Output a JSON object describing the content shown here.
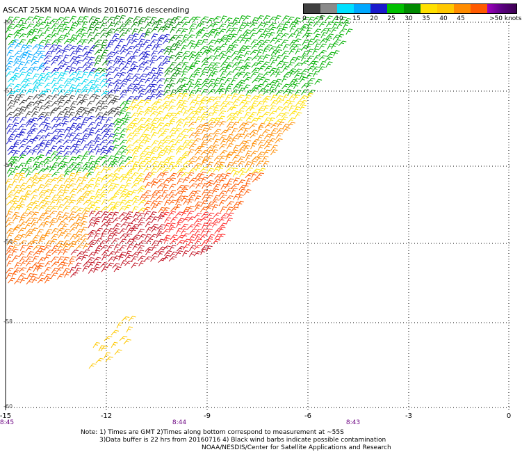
{
  "title": "ASCAT 25KM NOAA Winds 20160716 descending",
  "legend": {
    "colors": [
      "#404040",
      "#8a8a8a",
      "#00e0ff",
      "#00a8ff",
      "#1a1acc",
      "#00c000",
      "#008a00",
      "#ffe000",
      "#ffc800",
      "#ff8c00",
      "#ff5a00",
      "#ff2828",
      "#c01020",
      "#8a4a20",
      "#4a2000",
      "#e000e0",
      "#a000c0",
      "#8000a0",
      "#5a0080",
      "#3c0050"
    ],
    "ticks": [
      "0",
      "5",
      "10",
      "15",
      "20",
      "25",
      "30",
      "35",
      "40",
      "45",
      ">50 knots"
    ]
  },
  "axes": {
    "x_ticks": [
      "-15",
      "-12",
      "-9",
      "-6",
      "-3",
      "0"
    ],
    "y_ticks": [
      "-50",
      "-52",
      "-54",
      "-56",
      "-58",
      "-60"
    ]
  },
  "time_labels": [
    "8:45",
    "8:44",
    "8:43"
  ],
  "notes": [
    "Note: 1) Times are GMT 2)Times along bottom correspond to measurement at ~55S",
    "3)Data buffer is 22 hrs from 20160716 4) Black wind barbs indicate possible contamination",
    "NOAA/NESDIS/Center for Satellite Applications and Research"
  ]
}
